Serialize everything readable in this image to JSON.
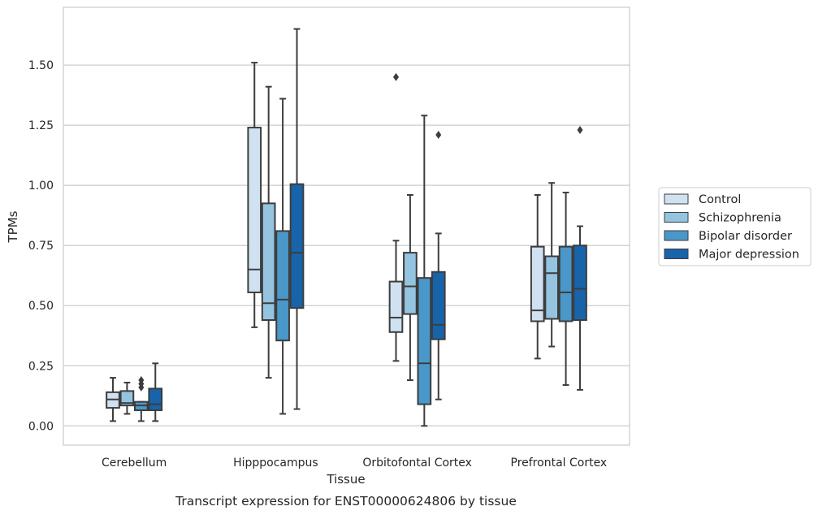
{
  "chart_data": {
    "type": "box",
    "title": "",
    "caption": "Transcript expression for ENST00000624806 by tissue",
    "xlabel": "Tissue",
    "ylabel": "TPMs",
    "ylim": [
      -0.08,
      1.74
    ],
    "yticks": [
      0.0,
      0.25,
      0.5,
      0.75,
      1.0,
      1.25,
      1.5
    ],
    "ytick_labels": [
      "0.00",
      "0.25",
      "0.50",
      "0.75",
      "1.00",
      "1.25",
      "1.50"
    ],
    "grid": "horizontal",
    "legend_position": "right",
    "categories": [
      "Cerebellum",
      "Hipppocampus",
      "Orbitofontal Cortex",
      "Prefrontal Cortex"
    ],
    "series": [
      {
        "name": "Control",
        "color": "#d0e1f2",
        "boxes": [
          {
            "whislo": 0.02,
            "q1": 0.075,
            "med": 0.11,
            "q3": 0.14,
            "whishi": 0.2,
            "fliers": []
          },
          {
            "whislo": 0.41,
            "q1": 0.555,
            "med": 0.65,
            "q3": 1.24,
            "whishi": 1.51,
            "fliers": []
          },
          {
            "whislo": 0.27,
            "q1": 0.39,
            "med": 0.45,
            "q3": 0.6,
            "whishi": 0.77,
            "fliers": [
              1.45
            ]
          },
          {
            "whislo": 0.28,
            "q1": 0.435,
            "med": 0.48,
            "q3": 0.745,
            "whishi": 0.96,
            "fliers": []
          }
        ]
      },
      {
        "name": "Schizophrenia",
        "color": "#94c4df",
        "boxes": [
          {
            "whislo": 0.05,
            "q1": 0.085,
            "med": 0.095,
            "q3": 0.145,
            "whishi": 0.18,
            "fliers": []
          },
          {
            "whislo": 0.2,
            "q1": 0.44,
            "med": 0.51,
            "q3": 0.925,
            "whishi": 1.41,
            "fliers": []
          },
          {
            "whislo": 0.19,
            "q1": 0.465,
            "med": 0.58,
            "q3": 0.72,
            "whishi": 0.96,
            "fliers": []
          },
          {
            "whislo": 0.33,
            "q1": 0.445,
            "med": 0.635,
            "q3": 0.705,
            "whishi": 1.01,
            "fliers": []
          }
        ]
      },
      {
        "name": "Bipolar disorder",
        "color": "#4a98c9",
        "boxes": [
          {
            "whislo": 0.02,
            "q1": 0.065,
            "med": 0.085,
            "q3": 0.1,
            "whishi": 0.1,
            "fliers": [
              0.16,
              0.175,
              0.19
            ]
          },
          {
            "whislo": 0.05,
            "q1": 0.355,
            "med": 0.525,
            "q3": 0.81,
            "whishi": 1.36,
            "fliers": []
          },
          {
            "whislo": 0.0,
            "q1": 0.09,
            "med": 0.26,
            "q3": 0.615,
            "whishi": 1.29,
            "fliers": []
          },
          {
            "whislo": 0.17,
            "q1": 0.435,
            "med": 0.555,
            "q3": 0.745,
            "whishi": 0.97,
            "fliers": []
          }
        ]
      },
      {
        "name": "Major depression",
        "color": "#1764ab",
        "boxes": [
          {
            "whislo": 0.02,
            "q1": 0.065,
            "med": 0.09,
            "q3": 0.155,
            "whishi": 0.26,
            "fliers": []
          },
          {
            "whislo": 0.07,
            "q1": 0.49,
            "med": 0.72,
            "q3": 1.005,
            "whishi": 1.65,
            "fliers": []
          },
          {
            "whislo": 0.11,
            "q1": 0.36,
            "med": 0.42,
            "q3": 0.64,
            "whishi": 0.8,
            "fliers": [
              1.21
            ]
          },
          {
            "whislo": 0.15,
            "q1": 0.44,
            "med": 0.57,
            "q3": 0.75,
            "whishi": 0.83,
            "fliers": [
              1.23
            ]
          }
        ]
      }
    ]
  }
}
